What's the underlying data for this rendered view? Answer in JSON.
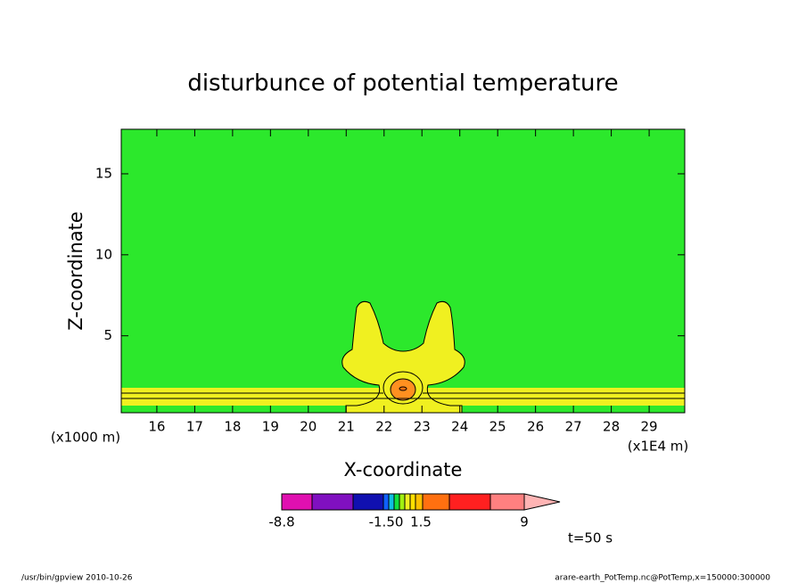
{
  "chart_data": {
    "type": "contour",
    "title": "disturbunce of potential temperature",
    "x_label": "X-coordinate",
    "y_label": "Z-coordinate",
    "x_unit": "(x1E4 m)",
    "y_unit": "(x1000 m)",
    "xlim": [
      15.06,
      29.94
    ],
    "ylim": [
      0.25,
      17.75
    ],
    "xticks": [
      16,
      17,
      18,
      19,
      20,
      21,
      22,
      23,
      24,
      25,
      26,
      27,
      28,
      29
    ],
    "yticks": [
      5,
      10,
      15
    ],
    "colorbar": {
      "colors": [
        "#e010b0",
        "#8010c0",
        "#1010b0",
        "#1060ff",
        "#10c0e0",
        "#10e040",
        "#a0f010",
        "#f0f020",
        "#ffe000",
        "#ffc000",
        "#ff7010",
        "#ff2020",
        "#ff8080",
        "#ffb4b4"
      ],
      "labels": [
        -8.8,
        {
          "value": -1.5,
          "label": "-1.50"
        },
        1.5,
        9
      ]
    },
    "annotation": "t=50 s",
    "footer_left": "/usr/bin/gpview  2010-10-26",
    "footer_right": "arare-earth_PotTemp.nc@PotTemp,x=150000:300000"
  }
}
